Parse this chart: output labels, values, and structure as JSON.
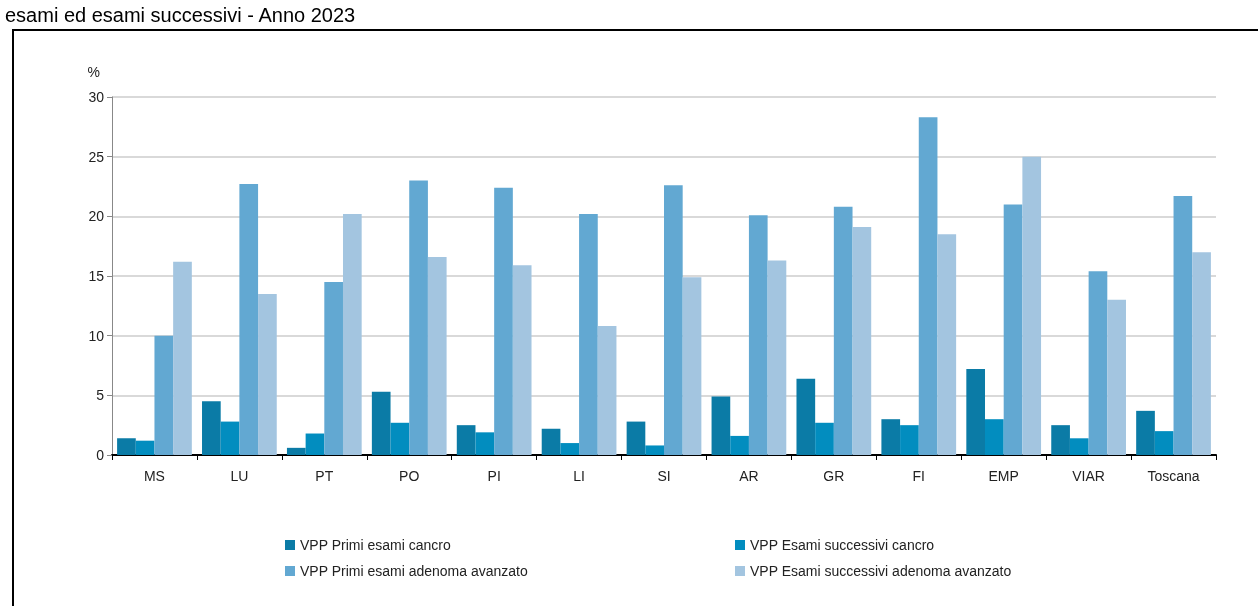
{
  "chart_data": {
    "type": "bar",
    "title": "esami ed esami successivi - Anno 2023",
    "ylabel": "%",
    "categories": [
      "MS",
      "LU",
      "PT",
      "PO",
      "PI",
      "LI",
      "SI",
      "AR",
      "GR",
      "FI",
      "EMP",
      "VIAR",
      "Toscana"
    ],
    "series": [
      {
        "name": "VPP Primi esami cancro",
        "color": "#0b7ba6",
        "values": [
          1.4,
          4.5,
          0.6,
          5.3,
          2.5,
          2.2,
          2.8,
          4.9,
          6.4,
          3.0,
          7.2,
          2.5,
          3.7
        ]
      },
      {
        "name": "VPP Esami successivi cancro",
        "color": "#028dbf",
        "values": [
          1.2,
          2.8,
          1.8,
          2.7,
          1.9,
          1.0,
          0.8,
          1.6,
          2.7,
          2.5,
          3.0,
          1.4,
          2.0
        ]
      },
      {
        "name": "VPP Primi esami adenoma avanzato",
        "color": "#62a8d2",
        "values": [
          10,
          22.7,
          14.5,
          23.0,
          22.4,
          20.2,
          22.6,
          20.1,
          20.8,
          28.3,
          21.0,
          15.4,
          21.7
        ]
      },
      {
        "name": "VPP Esami successivi adenoma avanzato",
        "color": "#a3c5e0",
        "values": [
          16.2,
          13.5,
          20.2,
          16.6,
          15.9,
          10.8,
          14.9,
          16.3,
          19.1,
          18.5,
          25.0,
          13.0,
          17.0
        ]
      }
    ],
    "ylim": [
      0,
      30
    ],
    "yticks": [
      0,
      5,
      10,
      15,
      20,
      25,
      30
    ],
    "grid": "y",
    "legend": "bottom"
  }
}
